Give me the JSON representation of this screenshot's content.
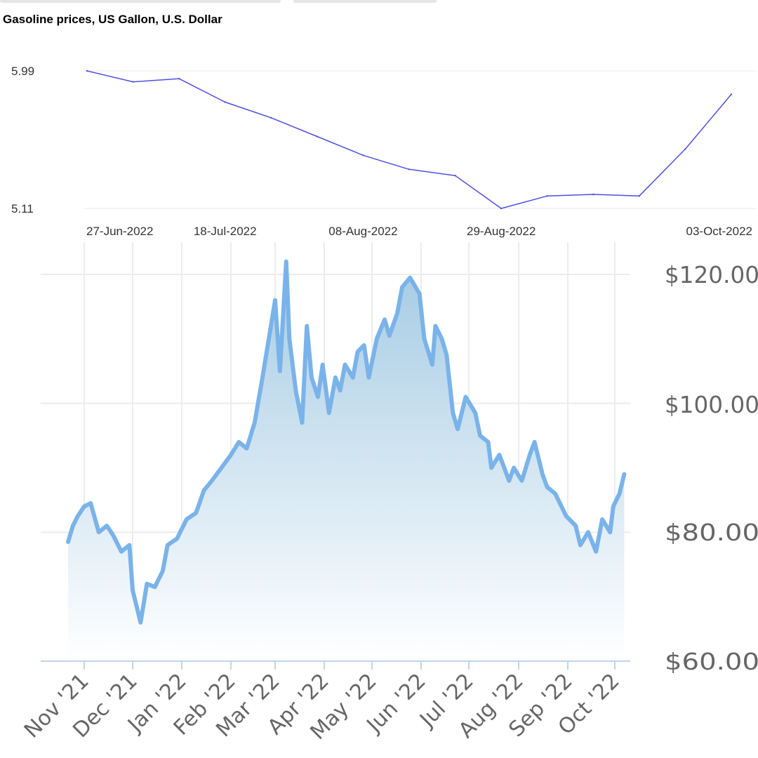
{
  "chart_data": [
    {
      "type": "line",
      "title": "Gasoline prices, US Gallon, U.S. Dollar",
      "x_tick_labels": [
        "27-Jun-2022",
        "18-Jul-2022",
        "08-Aug-2022",
        "29-Aug-2022",
        "03-Oct-2022"
      ],
      "y_tick_labels": [
        "5.99",
        "5.11"
      ],
      "ylim": [
        5.11,
        5.99
      ],
      "grid": true,
      "color": "#4f4fe0",
      "series": [
        {
          "x": [
            "2022-06-27",
            "2022-07-04",
            "2022-07-11",
            "2022-07-18",
            "2022-07-25",
            "2022-08-01",
            "2022-08-08",
            "2022-08-15",
            "2022-08-22",
            "2022-08-29",
            "2022-09-05",
            "2022-09-12",
            "2022-09-19",
            "2022-09-26",
            "2022-10-03"
          ],
          "values": [
            5.99,
            5.92,
            5.94,
            5.79,
            5.69,
            5.57,
            5.45,
            5.36,
            5.32,
            5.11,
            5.19,
            5.2,
            5.19,
            5.49,
            5.84
          ]
        }
      ]
    },
    {
      "type": "area",
      "y_tick_labels": [
        "$120.00",
        "$100.00",
        "$80.00",
        "$60.00"
      ],
      "x_tick_labels": [
        "Nov '21",
        "Dec '21",
        "Jan '22",
        "Feb '22",
        "Mar '22",
        "Apr '22",
        "May '22",
        "Jun '22",
        "Jul '22",
        "Aug '22",
        "Sep '22",
        "Oct '22"
      ],
      "ylim": [
        60,
        123
      ],
      "grid": true,
      "line_color": "#7ab3e9",
      "fill_top_color": "#a5cbe4",
      "series": [
        {
          "x": [
            "2021-10-22",
            "2021-10-25",
            "2021-10-28",
            "2021-11-01",
            "2021-11-05",
            "2021-11-10",
            "2021-11-15",
            "2021-11-19",
            "2021-11-24",
            "2021-11-29",
            "2021-12-01",
            "2021-12-06",
            "2021-12-10",
            "2021-12-15",
            "2021-12-20",
            "2021-12-23",
            "2021-12-29",
            "2022-01-04",
            "2022-01-10",
            "2022-01-15",
            "2022-01-20",
            "2022-01-26",
            "2022-02-01",
            "2022-02-06",
            "2022-02-11",
            "2022-02-16",
            "2022-02-21",
            "2022-02-25",
            "2022-03-01",
            "2022-03-04",
            "2022-03-08",
            "2022-03-10",
            "2022-03-14",
            "2022-03-18",
            "2022-03-21",
            "2022-03-24",
            "2022-03-28",
            "2022-03-31",
            "2022-04-04",
            "2022-04-08",
            "2022-04-11",
            "2022-04-14",
            "2022-04-19",
            "2022-04-22",
            "2022-04-26",
            "2022-04-29",
            "2022-05-04",
            "2022-05-09",
            "2022-05-12",
            "2022-05-17",
            "2022-05-20",
            "2022-05-25",
            "2022-05-31",
            "2022-06-03",
            "2022-06-08",
            "2022-06-10",
            "2022-06-14",
            "2022-06-17",
            "2022-06-21",
            "2022-06-24",
            "2022-06-29",
            "2022-07-05",
            "2022-07-08",
            "2022-07-13",
            "2022-07-15",
            "2022-07-20",
            "2022-07-26",
            "2022-07-29",
            "2022-08-03",
            "2022-08-08",
            "2022-08-11",
            "2022-08-16",
            "2022-08-19",
            "2022-08-24",
            "2022-08-26",
            "2022-08-31",
            "2022-09-06",
            "2022-09-09",
            "2022-09-14",
            "2022-09-19",
            "2022-09-23",
            "2022-09-28",
            "2022-09-30",
            "2022-10-04",
            "2022-10-07"
          ],
          "values": [
            78.5,
            81,
            82.5,
            84,
            84.5,
            80,
            81,
            79.5,
            77,
            78,
            71,
            66,
            72,
            71.5,
            74,
            78,
            79,
            82,
            83,
            86.5,
            88,
            90,
            92,
            94,
            93,
            97,
            104,
            110,
            116,
            105,
            122,
            110,
            102,
            97,
            112,
            104,
            101,
            106,
            98.5,
            104,
            102,
            106,
            104,
            108,
            109,
            104,
            110,
            113,
            110.5,
            114,
            118,
            119.5,
            117,
            110,
            106,
            112,
            110,
            107.5,
            98.5,
            96,
            101,
            98.5,
            95,
            94,
            90,
            92,
            88,
            90,
            88,
            92,
            94,
            89,
            87,
            86,
            85,
            82.5,
            81,
            78,
            80,
            77,
            82,
            80,
            84,
            86,
            89
          ]
        }
      ]
    }
  ]
}
